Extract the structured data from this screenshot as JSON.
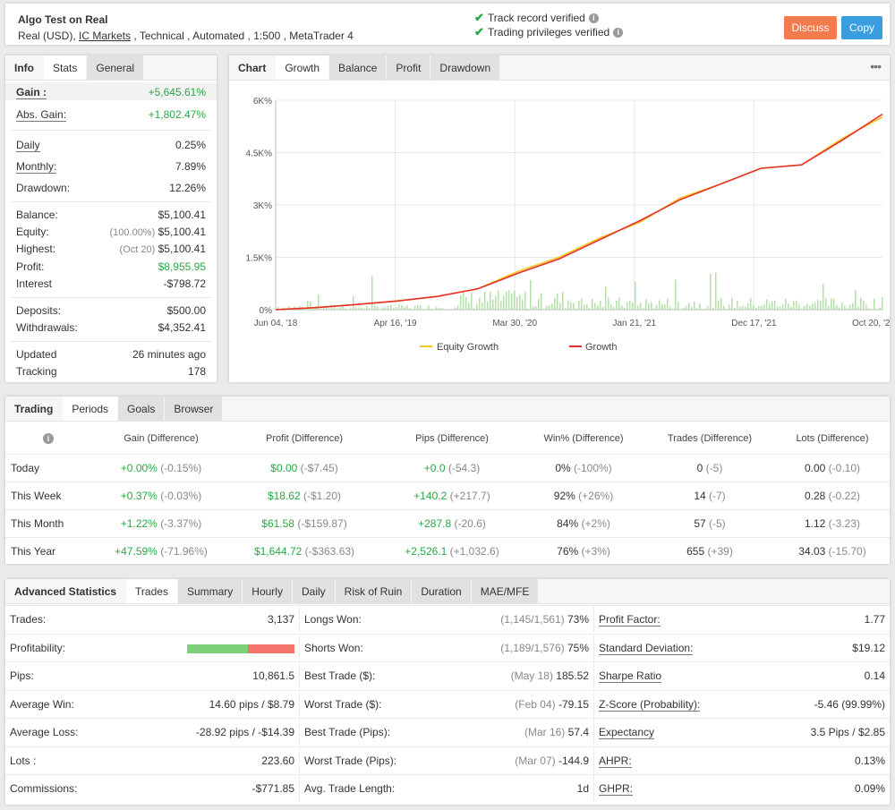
{
  "header": {
    "title": "Algo Test on Real",
    "sub_prefix": "Real (USD), ",
    "broker": "IC Markets",
    "sub_suffix": " , Technical , Automated , 1:500 , MetaTrader 4",
    "verified_track": "Track record verified",
    "verified_trading": "Trading privileges verified",
    "discuss_label": "Discuss",
    "copy_label": "Copy"
  },
  "colors": {
    "discuss": "#f47b4b",
    "copy": "#3a9de0",
    "gain_green": "#28a745",
    "growth_red": "#e8302a",
    "equity_yellow": "#f5c518",
    "bar_green": "#b3e0a8"
  },
  "info": {
    "tabs": [
      "Info",
      "Stats",
      "General"
    ],
    "gain_label": "Gain :",
    "gain_value": "+5,645.61%",
    "abs_gain_label": "Abs. Gain:",
    "abs_gain_value": "+1,802.47%",
    "daily_label": "Daily",
    "daily_value": "0.25%",
    "monthly_label": "Monthly:",
    "monthly_value": "7.89%",
    "drawdown_label": "Drawdown:",
    "drawdown_value": "12.26%",
    "balance_label": "Balance:",
    "balance_value": "$5,100.41",
    "equity_label": "Equity:",
    "equity_note": "(100.00%)",
    "equity_value": "$5,100.41",
    "highest_label": "Highest:",
    "highest_note": "(Oct 20)",
    "highest_value": "$5,100.41",
    "profit_label": "Profit:",
    "profit_value": "$8,955.95",
    "interest_label": "Interest",
    "interest_value": "-$798.72",
    "deposits_label": "Deposits:",
    "deposits_value": "$500.00",
    "withdrawals_label": "Withdrawals:",
    "withdrawals_value": "$4,352.41",
    "updated_label": "Updated",
    "updated_value": "26 minutes ago",
    "tracking_label": "Tracking",
    "tracking_value": "178"
  },
  "chart_panel": {
    "tabs": [
      "Chart",
      "Growth",
      "Balance",
      "Profit",
      "Drawdown"
    ],
    "menu_icon": "more-dots-icon"
  },
  "chart_data": {
    "type": "line",
    "x_tick_labels": [
      "Jun 04, '18",
      "Apr 16, '19",
      "Mar 30, '20",
      "Jan 21, '21",
      "Dec 17, '21",
      "Oct 20, '22"
    ],
    "y_tick_labels": [
      "0%",
      "1.5K%",
      "3K%",
      "4.5K%",
      "6K%"
    ],
    "ylim": [
      0,
      6000
    ],
    "grid": true,
    "legend_position": "bottom",
    "series": [
      {
        "name": "Equity Growth",
        "values": [
          0,
          60,
          150,
          250,
          380,
          600,
          1100,
          1500,
          2050,
          2500,
          3200,
          3600,
          4050,
          4150,
          4900,
          5520
        ]
      },
      {
        "name": "Growth",
        "values": [
          0,
          60,
          150,
          250,
          380,
          600,
          1050,
          1450,
          2000,
          2550,
          3150,
          3600,
          4050,
          4150,
          4850,
          5600
        ]
      }
    ],
    "x": [
      "Jun 04, '18",
      "",
      "",
      "Apr 16, '19",
      "",
      "",
      "Mar 30, '20",
      "",
      "Jan 21, '21",
      "",
      "",
      "Dec 17, '21",
      "",
      "",
      "",
      "Oct 20, '22"
    ]
  },
  "trading": {
    "tabs": [
      "Trading",
      "Periods",
      "Goals",
      "Browser"
    ],
    "headers": [
      "Gain (Difference)",
      "Profit (Difference)",
      "Pips (Difference)",
      "Win% (Difference)",
      "Trades (Difference)",
      "Lots (Difference)"
    ],
    "rows": [
      {
        "period": "Today",
        "gain": "+0.00%",
        "gain_d": "(-0.15%)",
        "profit": "$0.00",
        "profit_d": "(-$7.45)",
        "pips": "+0.0",
        "pips_d": "(-54.3)",
        "win": "0%",
        "win_d": "(-100%)",
        "trades": "0",
        "trades_d": "(-5)",
        "lots": "0.00",
        "lots_d": "(-0.10)"
      },
      {
        "period": "This Week",
        "gain": "+0.37%",
        "gain_d": "(-0.03%)",
        "profit": "$18.62",
        "profit_d": "(-$1.20)",
        "pips": "+140.2",
        "pips_d": "(+217.7)",
        "win": "92%",
        "win_d": "(+26%)",
        "trades": "14",
        "trades_d": "(-7)",
        "lots": "0.28",
        "lots_d": "(-0.22)"
      },
      {
        "period": "This Month",
        "gain": "+1.22%",
        "gain_d": "(-3.37%)",
        "profit": "$61.58",
        "profit_d": "(-$159.87)",
        "pips": "+287.8",
        "pips_d": "(-20.6)",
        "win": "84%",
        "win_d": "(+2%)",
        "trades": "57",
        "trades_d": "(-5)",
        "lots": "1.12",
        "lots_d": "(-3.23)"
      },
      {
        "period": "This Year",
        "gain": "+47.59%",
        "gain_d": "(-71.96%)",
        "profit": "$1,644.72",
        "profit_d": "(-$363.63)",
        "pips": "+2,526.1",
        "pips_d": "(+1,032.6)",
        "win": "76%",
        "win_d": "(+3%)",
        "trades": "655",
        "trades_d": "(+39)",
        "lots": "34.03",
        "lots_d": "(-15.70)"
      }
    ]
  },
  "advanced": {
    "tabs": [
      "Advanced Statistics",
      "Trades",
      "Summary",
      "Hourly",
      "Daily",
      "Risk of Ruin",
      "Duration",
      "MAE/MFE"
    ],
    "col1": [
      {
        "label": "Trades:",
        "value": "3,137"
      },
      {
        "label": "Profitability:",
        "value": ""
      },
      {
        "label": "Pips:",
        "value": "10,861.5"
      },
      {
        "label": "Average Win:",
        "value": "14.60 pips / $8.79"
      },
      {
        "label": "Average Loss:",
        "value": "-28.92 pips / -$14.39"
      },
      {
        "label": "Lots :",
        "value": "223.60"
      },
      {
        "label": "Commissions:",
        "value": "-$771.85"
      }
    ],
    "profitability_fraction": 0.57,
    "col2": [
      {
        "label": "Longs Won:",
        "note": "(1,145/1,561)",
        "value": "73%"
      },
      {
        "label": "Shorts Won:",
        "note": "(1,189/1,576)",
        "value": "75%"
      },
      {
        "label": "Best Trade ($):",
        "note": "(May 18)",
        "value": "185.52"
      },
      {
        "label": "Worst Trade ($):",
        "note": "(Feb 04)",
        "value": "-79.15"
      },
      {
        "label": "Best Trade (Pips):",
        "note": "(Mar 16)",
        "value": "57.4"
      },
      {
        "label": "Worst Trade (Pips):",
        "note": "(Mar 07)",
        "value": "-144.9"
      },
      {
        "label": "Avg. Trade Length:",
        "note": "",
        "value": "1d"
      }
    ],
    "col3": [
      {
        "label": "Profit Factor:",
        "value": "1.77"
      },
      {
        "label": "Standard Deviation:",
        "value": "$19.12"
      },
      {
        "label": "Sharpe Ratio",
        "value": "0.14"
      },
      {
        "label": "Z-Score (Probability):",
        "value": "-5.46 (99.99%)"
      },
      {
        "label": "Expectancy",
        "value": "3.5 Pips / $2.85"
      },
      {
        "label": "AHPR:",
        "value": "0.13%"
      },
      {
        "label": "GHPR:",
        "value": "0.09%"
      }
    ]
  }
}
